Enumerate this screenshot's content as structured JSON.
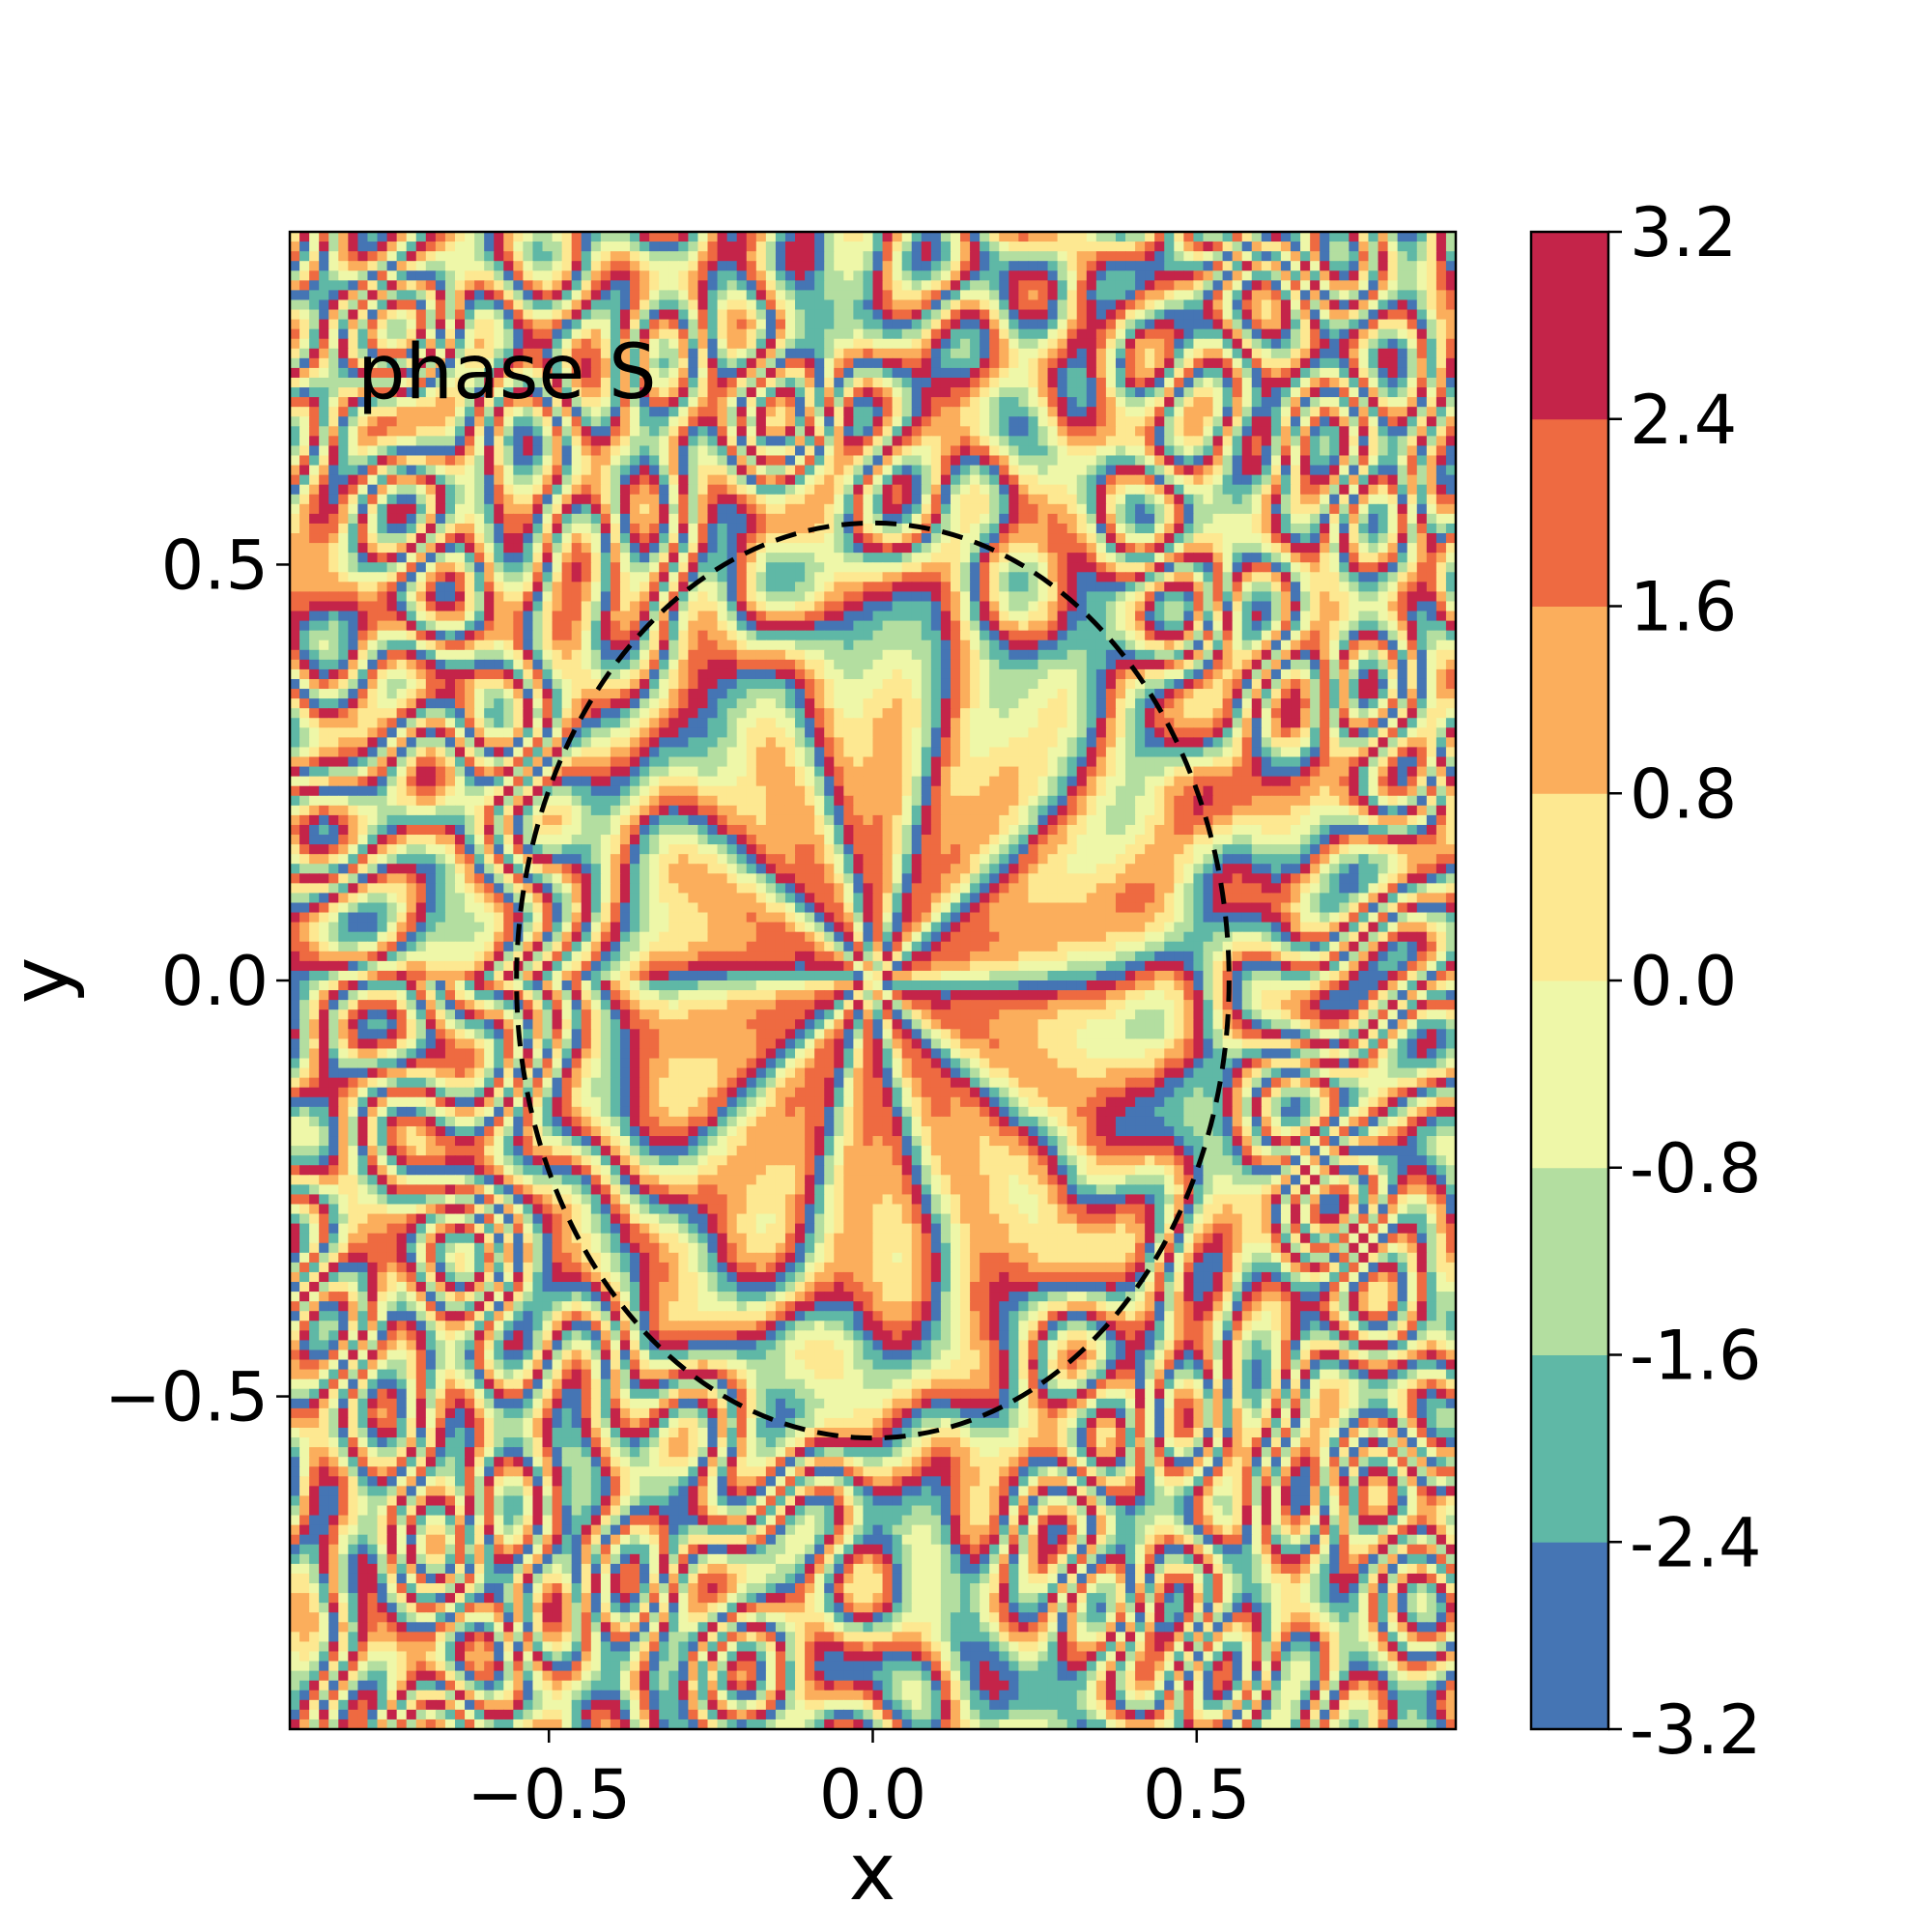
{
  "chart_data": {
    "type": "heatmap",
    "subtype": "filled-contour",
    "annotation": "phase S",
    "xlabel": "x",
    "ylabel": "y",
    "xlim": [
      -0.9,
      0.9
    ],
    "ylim": [
      -0.9,
      0.9
    ],
    "xticks": [
      -0.5,
      0.0,
      0.5
    ],
    "yticks": [
      -0.5,
      0.0,
      0.5
    ],
    "xtick_labels": [
      "−0.5",
      "0.0",
      "0.5"
    ],
    "ytick_labels": [
      "−0.5",
      "0.0",
      "0.5"
    ],
    "colormap": "Spectral_r",
    "colorbar": {
      "levels": [
        -3.2,
        -2.4,
        -1.6,
        -0.8,
        0.0,
        0.8,
        1.6,
        2.4,
        3.2
      ],
      "tick_labels": [
        "-3.2",
        "-2.4",
        "-1.6",
        "-0.8",
        "0.0",
        "0.8",
        "1.6",
        "2.4",
        "3.2"
      ],
      "colors": [
        "#4575b4",
        "#5fb8a6",
        "#b3dea0",
        "#eef7a8",
        "#fde891",
        "#fbae5c",
        "#ee6a41",
        "#c42449"
      ]
    },
    "overlay": {
      "shape": "circle",
      "style": "dashed",
      "color": "#000000",
      "center": [
        0.0,
        0.0
      ],
      "radius": 0.55
    },
    "grid": false,
    "field_description": "phase of a vortex field: spiral arms near origin (winding number ~10) inside the dashed circle, speckled random phase outside"
  }
}
